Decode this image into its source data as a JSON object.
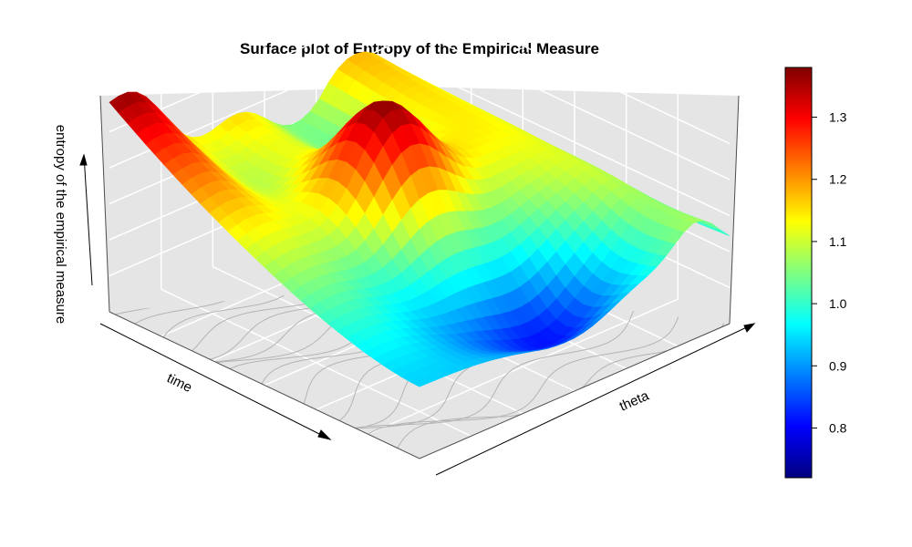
{
  "chart_data": {
    "type": "surface3d",
    "title": "Surface plot of Entropy of the Empirical Measure",
    "xlabel": "time",
    "ylabel": "theta",
    "zlabel": "entropy of the empirical measure",
    "colorbar": {
      "ticks": [
        0.8,
        0.9,
        1.0,
        1.1,
        1.2,
        1.3
      ],
      "tick_labels": [
        "0.8",
        "0.9",
        "1.0",
        "1.1",
        "1.2",
        "1.3"
      ],
      "range": [
        0.72,
        1.38
      ],
      "colormap": "jet",
      "colors": [
        "#00007f",
        "#0000ff",
        "#007fff",
        "#00ffff",
        "#7fff7f",
        "#ffff00",
        "#ff7f00",
        "#ff0000",
        "#7f0000"
      ]
    },
    "zlim": [
      0.72,
      1.38
    ],
    "grid": true,
    "contours_on_floor": true,
    "panel_color": "#e5e5e5",
    "grid_color": "#ffffff",
    "contour_color": "#b4b4b4"
  }
}
